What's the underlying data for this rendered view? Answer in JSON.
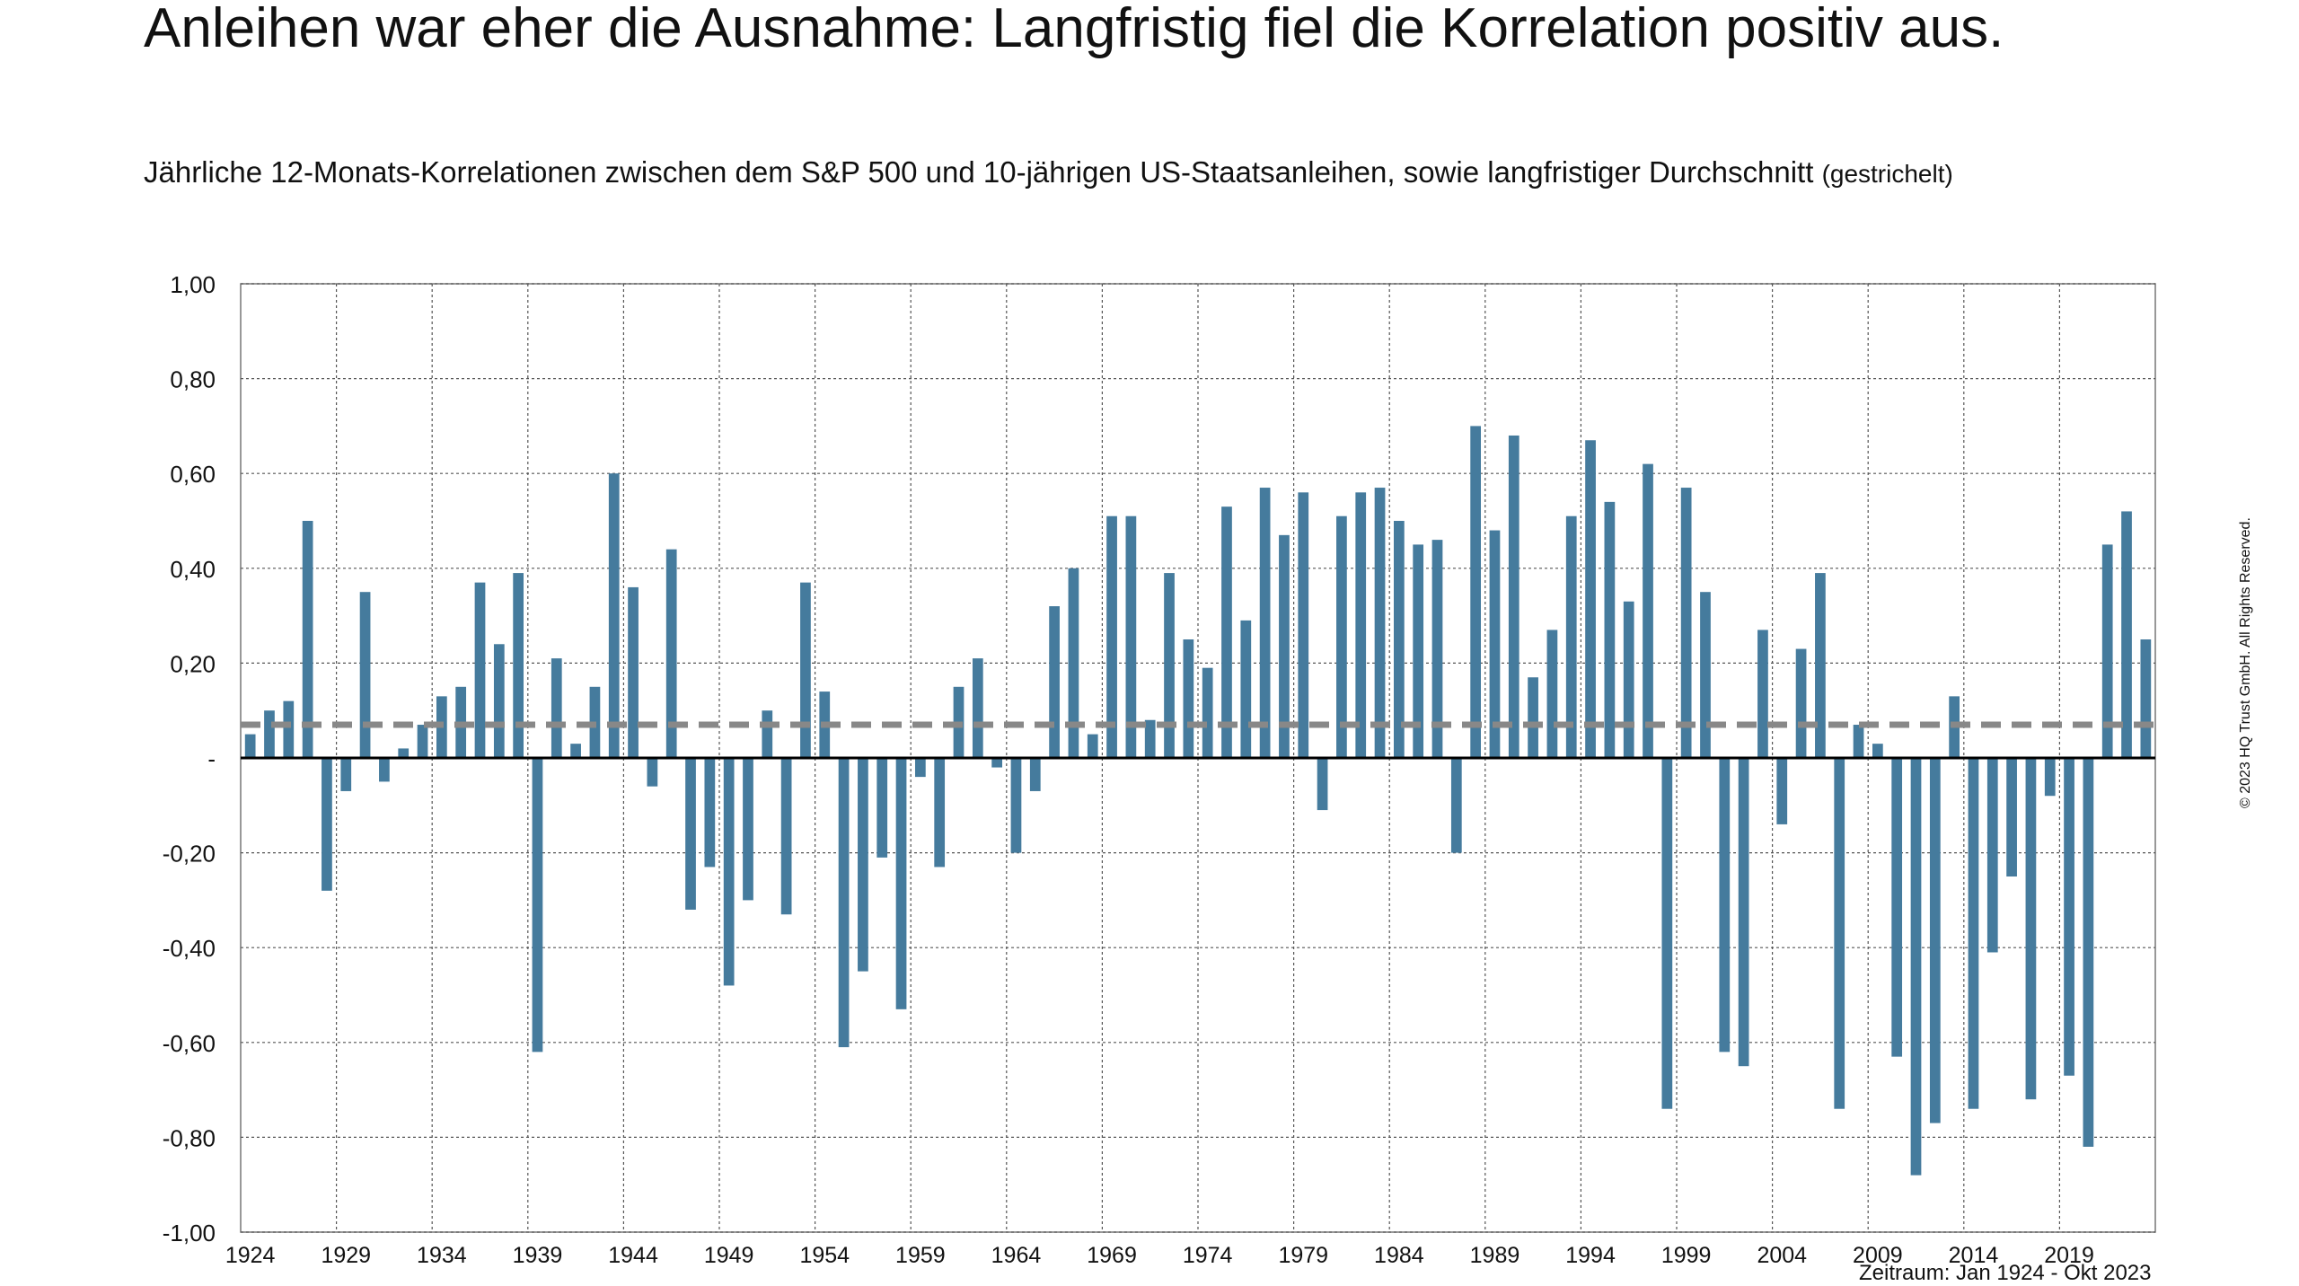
{
  "header": {
    "title": "Anleihen war eher die Ausnahme: Langfristig fiel die Korrelation positiv aus.",
    "subtitle_main": "Jährliche 12-Monats-Korrelationen zwischen dem S&P 500 und 10-jährigen US-Staatsanleihen, sowie langfristiger Durchschnitt",
    "subtitle_note": "(gestrichelt)"
  },
  "footer": {
    "copyright": "© 2023 HQ Trust GmbH. All Rights Reserved.",
    "period": "Zeitraum: Jan 1924 - Okt 2023"
  },
  "colors": {
    "bar": "#457b9d",
    "average_line": "#888888",
    "zero_line": "#000000",
    "grid": "#555555"
  },
  "chart_data": {
    "type": "bar",
    "title": "",
    "xlabel": "",
    "ylabel": "",
    "ylim": [
      -1.0,
      1.0
    ],
    "y_ticks": [
      {
        "value": 1.0,
        "label": "1,00"
      },
      {
        "value": 0.8,
        "label": "0,80"
      },
      {
        "value": 0.6,
        "label": "0,60"
      },
      {
        "value": 0.4,
        "label": "0,40"
      },
      {
        "value": 0.2,
        "label": "0,20"
      },
      {
        "value": 0.0,
        "label": "-"
      },
      {
        "value": -0.2,
        "label": "-0,20"
      },
      {
        "value": -0.4,
        "label": "-0,40"
      },
      {
        "value": -0.6,
        "label": "-0,60"
      },
      {
        "value": -0.8,
        "label": "-0,80"
      },
      {
        "value": -1.0,
        "label": "-1,00"
      }
    ],
    "x_tick_labels": [
      "1924",
      "1929",
      "1934",
      "1939",
      "1944",
      "1949",
      "1954",
      "1959",
      "1964",
      "1969",
      "1974",
      "1979",
      "1984",
      "1989",
      "1994",
      "1999",
      "2004",
      "2009",
      "2014",
      "2019"
    ],
    "grid": true,
    "long_term_average": 0.07,
    "categories": [
      "1924",
      "1925",
      "1926",
      "1927",
      "1928",
      "1929",
      "1930",
      "1931",
      "1932",
      "1933",
      "1934",
      "1935",
      "1936",
      "1937",
      "1938",
      "1939",
      "1940",
      "1941",
      "1942",
      "1943",
      "1944",
      "1945",
      "1946",
      "1947",
      "1948",
      "1949",
      "1950",
      "1951",
      "1952",
      "1953",
      "1954",
      "1955",
      "1956",
      "1957",
      "1958",
      "1959",
      "1960",
      "1961",
      "1962",
      "1963",
      "1964",
      "1965",
      "1966",
      "1967",
      "1968",
      "1969",
      "1970",
      "1971",
      "1972",
      "1973",
      "1974",
      "1975",
      "1976",
      "1977",
      "1978",
      "1979",
      "1980",
      "1981",
      "1982",
      "1983",
      "1984",
      "1985",
      "1986",
      "1987",
      "1988",
      "1989",
      "1990",
      "1991",
      "1992",
      "1993",
      "1994",
      "1995",
      "1996",
      "1997",
      "1998",
      "1999",
      "2000",
      "2001",
      "2002",
      "2003",
      "2004",
      "2005",
      "2006",
      "2007",
      "2008",
      "2009",
      "2010",
      "2011",
      "2012",
      "2013",
      "2014",
      "2015",
      "2016",
      "2017",
      "2018",
      "2019",
      "2020",
      "2021",
      "2022",
      "2023"
    ],
    "values": [
      0.05,
      0.1,
      0.12,
      0.5,
      -0.28,
      -0.07,
      0.35,
      -0.05,
      0.02,
      0.07,
      0.13,
      0.15,
      0.37,
      0.24,
      0.39,
      -0.62,
      0.21,
      0.03,
      0.15,
      0.6,
      0.36,
      -0.06,
      0.44,
      -0.32,
      -0.23,
      -0.48,
      -0.3,
      0.1,
      -0.33,
      0.37,
      0.14,
      -0.61,
      -0.45,
      -0.21,
      -0.53,
      -0.04,
      -0.23,
      0.15,
      0.21,
      -0.02,
      -0.2,
      -0.07,
      0.32,
      0.4,
      0.05,
      0.51,
      0.51,
      0.08,
      0.39,
      0.25,
      0.19,
      0.53,
      0.29,
      0.57,
      0.47,
      0.56,
      -0.11,
      0.51,
      0.56,
      0.57,
      0.5,
      0.45,
      0.46,
      -0.2,
      0.7,
      0.48,
      0.68,
      0.17,
      0.27,
      0.51,
      0.67,
      0.54,
      0.33,
      0.62,
      -0.74,
      0.57,
      0.35,
      -0.62,
      -0.65,
      0.27,
      -0.14,
      0.23,
      0.39,
      -0.74,
      0.07,
      0.03,
      -0.63,
      -0.88,
      -0.77,
      0.13,
      -0.74,
      -0.41,
      -0.25,
      -0.72,
      -0.08,
      -0.67,
      -0.82,
      0.45,
      0.52,
      0.25
    ]
  }
}
